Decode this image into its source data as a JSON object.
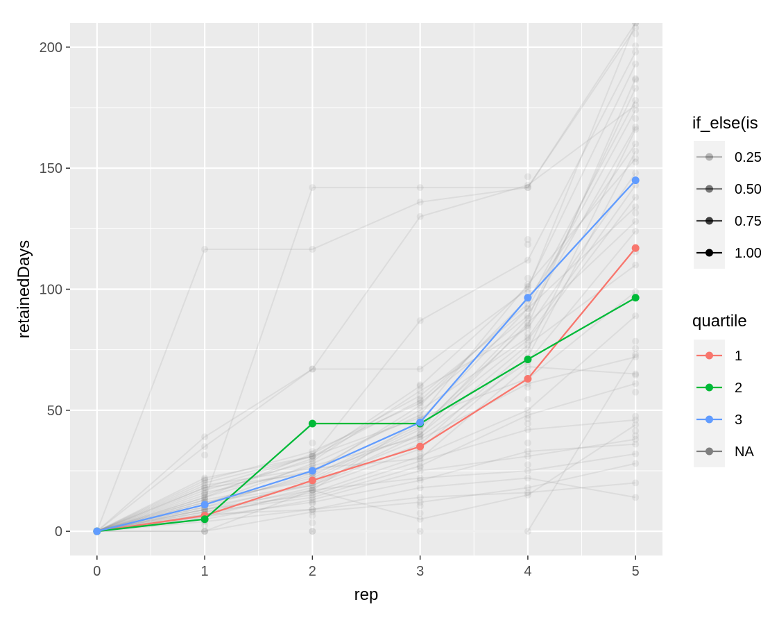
{
  "chart_data": {
    "type": "line",
    "xlabel": "rep",
    "ylabel": "retainedDays",
    "x_ticks": [
      "0",
      "1",
      "2",
      "3",
      "4",
      "5"
    ],
    "y_ticks": [
      "0",
      "50",
      "100",
      "150",
      "200"
    ],
    "xlim": [
      -0.25,
      5.25
    ],
    "ylim": [
      -10,
      210
    ],
    "grid": true,
    "background_color": "#ebebeb",
    "series": [
      {
        "name": "1",
        "color": "#f8766d",
        "x": [
          0,
          1,
          2,
          3,
          4,
          5
        ],
        "values": [
          0,
          6.5,
          21,
          35,
          63,
          117
        ]
      },
      {
        "name": "2",
        "color": "#00ba38",
        "x": [
          0,
          1,
          2,
          3,
          4,
          5
        ],
        "values": [
          0,
          5,
          44.5,
          44.5,
          71,
          96.5
        ]
      },
      {
        "name": "3",
        "color": "#619cff",
        "x": [
          0,
          1,
          2,
          3,
          4,
          5
        ],
        "values": [
          0,
          11,
          25,
          45,
          96.5,
          145
        ]
      }
    ],
    "background_series": {
      "name": "NA",
      "color": "#7f7f7f",
      "lines": [
        [
          0,
          116.5,
          116.5,
          136,
          142,
          210
        ],
        [
          0,
          13,
          142,
          142,
          142,
          208
        ],
        [
          0,
          35,
          67,
          67,
          100,
          210
        ],
        [
          0,
          22,
          31,
          87,
          112,
          198
        ],
        [
          0,
          39,
          67,
          130,
          143,
          176
        ],
        [
          0,
          0,
          17,
          22,
          25,
          32
        ],
        [
          0,
          0,
          8,
          12,
          18,
          28
        ],
        [
          0,
          20,
          31,
          47,
          63,
          99
        ],
        [
          0,
          18,
          24,
          40,
          86,
          128
        ],
        [
          0,
          7,
          9,
          14,
          16,
          20
        ],
        [
          0,
          9,
          15,
          29,
          42,
          46
        ],
        [
          0,
          10,
          19,
          36,
          75,
          166
        ],
        [
          0,
          8,
          18,
          34,
          72,
          157
        ],
        [
          0,
          12,
          22,
          43,
          85,
          187
        ],
        [
          0,
          6,
          17,
          46,
          92,
          134
        ],
        [
          0,
          11,
          28,
          48,
          102,
          154
        ],
        [
          0,
          9,
          20,
          38,
          61,
          72
        ],
        [
          0,
          14,
          32,
          56,
          92,
          174
        ],
        [
          0,
          5,
          13,
          25,
          31,
          38
        ],
        [
          0,
          16,
          25,
          50,
          80,
          143
        ],
        [
          0,
          4,
          9,
          18,
          22,
          14
        ],
        [
          0,
          19,
          26,
          30,
          68,
          65
        ],
        [
          0,
          13,
          21,
          42,
          88,
          183
        ],
        [
          0,
          7,
          16,
          31,
          50,
          89
        ],
        [
          0,
          10,
          24,
          52,
          96,
          160
        ],
        [
          0,
          15,
          30,
          60,
          101,
          193
        ],
        [
          0,
          12,
          19,
          40,
          77,
          110
        ],
        [
          0,
          17,
          29,
          58,
          84,
          148
        ],
        [
          0,
          8,
          14,
          27,
          48,
          61
        ],
        [
          0,
          21,
          33,
          53,
          89,
          167
        ],
        [
          0,
          6,
          12,
          21,
          33,
          36
        ],
        [
          0,
          11,
          23,
          44,
          79,
          138
        ],
        [
          0,
          0,
          0,
          0,
          0,
          73
        ],
        [
          0,
          14,
          27,
          39,
          70,
          124
        ],
        [
          0,
          9,
          17,
          5,
          15,
          44
        ],
        [
          0,
          18,
          31,
          54,
          94,
          178
        ]
      ],
      "extra_points": [
        [
          1,
          2.5
        ],
        [
          1,
          4.5
        ],
        [
          1,
          15.5
        ],
        [
          1,
          21.5
        ],
        [
          1,
          31.5
        ],
        [
          2,
          0
        ],
        [
          2,
          3.5
        ],
        [
          2,
          6.5
        ],
        [
          2,
          11.5
        ],
        [
          2,
          36.5
        ],
        [
          3,
          7.5
        ],
        [
          3,
          10.5
        ],
        [
          3,
          26.5
        ],
        [
          3,
          32.5
        ],
        [
          3,
          54.5
        ],
        [
          3,
          60.5
        ],
        [
          4,
          27.5
        ],
        [
          4,
          36.5
        ],
        [
          4,
          44.5
        ],
        [
          4,
          46.5
        ],
        [
          4,
          54.5
        ],
        [
          4,
          59.5
        ],
        [
          4,
          65.5
        ],
        [
          4,
          81.5
        ],
        [
          4,
          98.5
        ],
        [
          4,
          104.5
        ],
        [
          4,
          118.5
        ],
        [
          4,
          120.5
        ],
        [
          4,
          146.5
        ],
        [
          5,
          39.5
        ],
        [
          5,
          41.5
        ],
        [
          5,
          47.5
        ],
        [
          5,
          57.5
        ],
        [
          5,
          64.5
        ],
        [
          5,
          75.5
        ],
        [
          5,
          78.5
        ],
        [
          5,
          115.5
        ],
        [
          5,
          131.5
        ],
        [
          5,
          152.5
        ],
        [
          5,
          170.5
        ],
        [
          5,
          186.5
        ],
        [
          5,
          200.5
        ],
        [
          5,
          205.5
        ]
      ]
    },
    "legends": [
      {
        "title": "if_else(is",
        "entries": [
          {
            "label": "0.25",
            "opacity": 0.25
          },
          {
            "label": "0.50",
            "opacity": 0.5
          },
          {
            "label": "0.75",
            "opacity": 0.75
          },
          {
            "label": "1.00",
            "opacity": 1.0
          }
        ]
      },
      {
        "title": "quartile",
        "entries": [
          {
            "label": "1",
            "color": "#f8766d"
          },
          {
            "label": "2",
            "color": "#00ba38"
          },
          {
            "label": "3",
            "color": "#619cff"
          },
          {
            "label": "NA",
            "color": "#7f7f7f"
          }
        ]
      }
    ]
  }
}
